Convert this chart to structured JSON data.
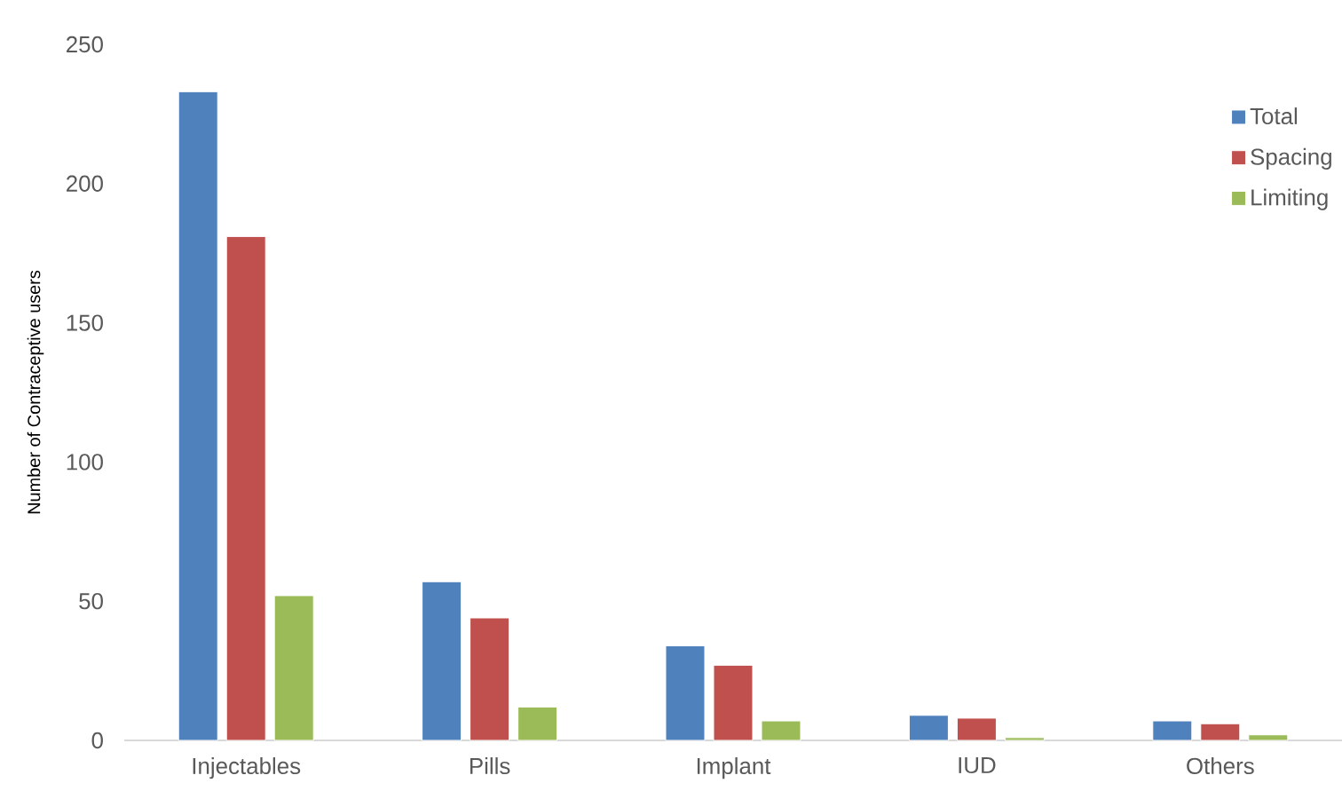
{
  "chart_data": {
    "type": "bar",
    "ylabel": "Number of Contraceptive users",
    "categories": [
      "Injectables",
      "Pills",
      "Implant",
      "IUD",
      "Others"
    ],
    "series": [
      {
        "name": "Total",
        "color": "#4f81bd",
        "values": [
          233,
          57,
          34,
          9,
          7
        ]
      },
      {
        "name": "Spacing",
        "color": "#c0504d",
        "values": [
          181,
          44,
          27,
          8,
          6
        ]
      },
      {
        "name": "Limiting",
        "color": "#9bbb59",
        "values": [
          52,
          12,
          7,
          1,
          2
        ]
      }
    ],
    "ylim": [
      0,
      250
    ],
    "yticks": [
      0,
      50,
      100,
      150,
      200,
      250
    ],
    "grid": false,
    "legend": "top right"
  }
}
